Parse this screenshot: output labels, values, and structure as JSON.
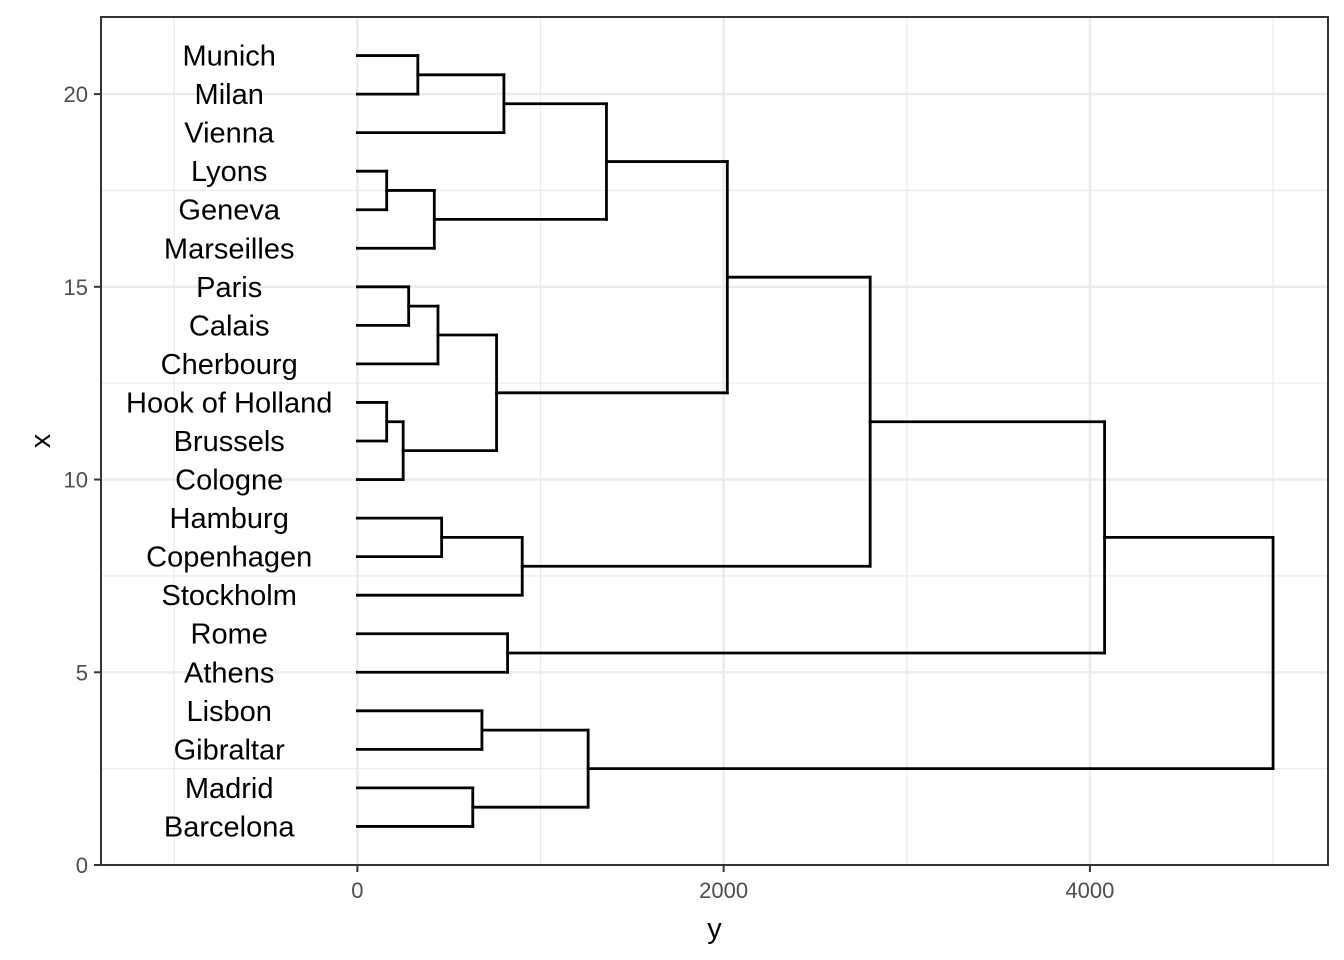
{
  "chart_data": {
    "type": "dendrogram",
    "orientation": "horizontal",
    "xlabel": "y",
    "ylabel": "x",
    "xlim": [
      -1400,
      5300
    ],
    "ylim": [
      0,
      22
    ],
    "x_ticks": [
      0,
      2000,
      4000
    ],
    "y_ticks": [
      0,
      5,
      10,
      15,
      20
    ],
    "grid": true,
    "leaf_label_x": -700,
    "leaves": [
      {
        "label": "Barcelona",
        "y": 1
      },
      {
        "label": "Madrid",
        "y": 2
      },
      {
        "label": "Gibraltar",
        "y": 3
      },
      {
        "label": "Lisbon",
        "y": 4
      },
      {
        "label": "Athens",
        "y": 5
      },
      {
        "label": "Rome",
        "y": 6
      },
      {
        "label": "Stockholm",
        "y": 7
      },
      {
        "label": "Copenhagen",
        "y": 8
      },
      {
        "label": "Hamburg",
        "y": 9
      },
      {
        "label": "Cologne",
        "y": 10
      },
      {
        "label": "Brussels",
        "y": 11
      },
      {
        "label": "Hook of Holland",
        "y": 12
      },
      {
        "label": "Cherbourg",
        "y": 13
      },
      {
        "label": "Calais",
        "y": 14
      },
      {
        "label": "Paris",
        "y": 15
      },
      {
        "label": "Marseilles",
        "y": 16
      },
      {
        "label": "Geneva",
        "y": 17
      },
      {
        "label": "Lyons",
        "y": 18
      },
      {
        "label": "Vienna",
        "y": 19
      },
      {
        "label": "Milan",
        "y": 20
      },
      {
        "label": "Munich",
        "y": 21
      }
    ],
    "merges": [
      {
        "height": 160,
        "a": {
          "y": 11,
          "h": 0
        },
        "b": {
          "y": 12,
          "h": 0
        }
      },
      {
        "height": 160,
        "a": {
          "y": 17,
          "h": 0
        },
        "b": {
          "y": 18,
          "h": 0
        }
      },
      {
        "height": 250,
        "a": {
          "y": 10,
          "h": 0
        },
        "b": {
          "y": 11.5,
          "h": 160
        }
      },
      {
        "height": 280,
        "a": {
          "y": 14,
          "h": 0
        },
        "b": {
          "y": 15,
          "h": 0
        }
      },
      {
        "height": 330,
        "a": {
          "y": 20,
          "h": 0
        },
        "b": {
          "y": 21,
          "h": 0
        }
      },
      {
        "height": 420,
        "a": {
          "y": 16,
          "h": 0
        },
        "b": {
          "y": 17.5,
          "h": 160
        }
      },
      {
        "height": 440,
        "a": {
          "y": 13,
          "h": 0
        },
        "b": {
          "y": 14.5,
          "h": 280
        }
      },
      {
        "height": 460,
        "a": {
          "y": 8,
          "h": 0
        },
        "b": {
          "y": 9,
          "h": 0
        }
      },
      {
        "height": 630,
        "a": {
          "y": 1,
          "h": 0
        },
        "b": {
          "y": 2,
          "h": 0
        }
      },
      {
        "height": 680,
        "a": {
          "y": 3,
          "h": 0
        },
        "b": {
          "y": 4,
          "h": 0
        }
      },
      {
        "height": 760,
        "a": {
          "y": 10.75,
          "h": 250
        },
        "b": {
          "y": 13.75,
          "h": 440
        }
      },
      {
        "height": 800,
        "a": {
          "y": 19,
          "h": 0
        },
        "b": {
          "y": 20.5,
          "h": 330
        }
      },
      {
        "height": 820,
        "a": {
          "y": 5,
          "h": 0
        },
        "b": {
          "y": 6,
          "h": 0
        }
      },
      {
        "height": 900,
        "a": {
          "y": 7,
          "h": 0
        },
        "b": {
          "y": 8.5,
          "h": 460
        }
      },
      {
        "height": 1260,
        "a": {
          "y": 1.5,
          "h": 630
        },
        "b": {
          "y": 3.5,
          "h": 680
        }
      },
      {
        "height": 1360,
        "a": {
          "y": 16.75,
          "h": 420
        },
        "b": {
          "y": 19.75,
          "h": 800
        }
      },
      {
        "height": 2020,
        "a": {
          "y": 12.25,
          "h": 760
        },
        "b": {
          "y": 18.25,
          "h": 1360
        }
      },
      {
        "height": 2800,
        "a": {
          "y": 7.75,
          "h": 900
        },
        "b": {
          "y": 15.25,
          "h": 2020
        }
      },
      {
        "height": 4080,
        "a": {
          "y": 5.5,
          "h": 820
        },
        "b": {
          "y": 11.5,
          "h": 2800
        }
      },
      {
        "height": 5000,
        "a": {
          "y": 2.5,
          "h": 1260
        },
        "b": {
          "y": 8.5,
          "h": 4080
        }
      }
    ]
  }
}
